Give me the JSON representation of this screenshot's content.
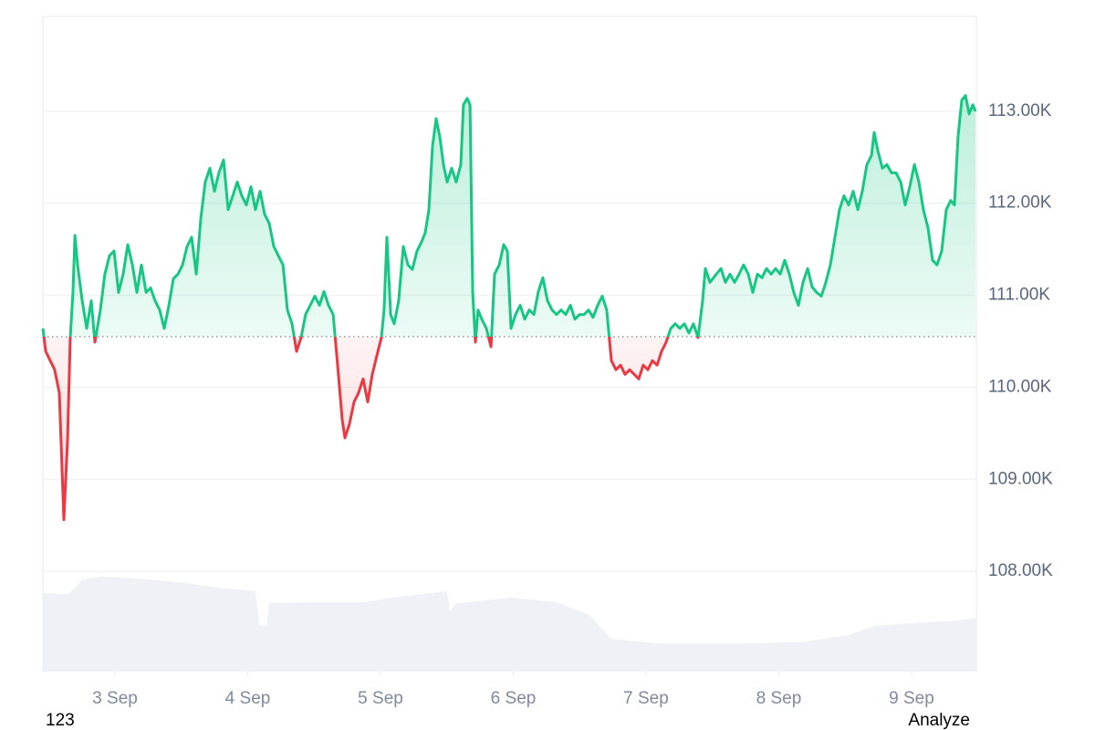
{
  "chart_data": {
    "type": "baseline",
    "xlim": [
      2.457,
      9.488
    ],
    "ylim": [
      106910,
      114030
    ],
    "y2lim": [
      0,
      100
    ],
    "xticks": [
      {
        "value": 3,
        "label": "3 Sep"
      },
      {
        "value": 4,
        "label": "4 Sep"
      },
      {
        "value": 5,
        "label": "5 Sep"
      },
      {
        "value": 6,
        "label": "6 Sep"
      },
      {
        "value": 7,
        "label": "7 Sep"
      },
      {
        "value": 8,
        "label": "8 Sep"
      },
      {
        "value": 9,
        "label": "9 Sep"
      }
    ],
    "yticks": [
      {
        "value": 108000,
        "label": "108.00K"
      },
      {
        "value": 109000,
        "label": "109.00K"
      },
      {
        "value": 110000,
        "label": "110.00K"
      },
      {
        "value": 111000,
        "label": "111.00K"
      },
      {
        "value": 112000,
        "label": "112.00K"
      },
      {
        "value": 113000,
        "label": "113.00K"
      }
    ],
    "grid": true,
    "baseline": 110550,
    "above_color": "#16c784",
    "below_color": "#ea3943",
    "series": [
      {
        "color": "#16c784",
        "x": [
          2.457,
          2.478,
          2.512,
          2.546,
          2.581,
          2.615,
          2.643,
          2.663,
          2.684,
          2.698,
          2.718,
          2.753,
          2.787,
          2.821,
          2.849,
          2.89,
          2.924,
          2.959,
          2.993,
          3.027,
          3.062,
          3.096,
          3.131,
          3.165,
          3.199,
          3.234,
          3.268,
          3.302,
          3.337,
          3.371,
          3.405,
          3.44,
          3.474,
          3.509,
          3.543,
          3.577,
          3.612,
          3.646,
          3.68,
          3.715,
          3.749,
          3.783,
          3.818,
          3.852,
          3.887,
          3.921,
          3.955,
          3.99,
          4.024,
          4.058,
          4.093,
          4.127,
          4.162,
          4.196,
          4.23,
          4.265,
          4.299,
          4.333,
          4.368,
          4.402,
          4.436,
          4.471,
          4.505,
          4.54,
          4.574,
          4.608,
          4.643,
          4.677,
          4.711,
          4.732,
          4.766,
          4.801,
          4.835,
          4.869,
          4.904,
          4.938,
          4.972,
          5.007,
          5.027,
          5.048,
          5.076,
          5.103,
          5.137,
          5.172,
          5.206,
          5.24,
          5.275,
          5.309,
          5.337,
          5.364,
          5.392,
          5.419,
          5.447,
          5.474,
          5.502,
          5.536,
          5.57,
          5.605,
          5.625,
          5.653,
          5.674,
          5.694,
          5.715,
          5.735,
          5.763,
          5.797,
          5.832,
          5.859,
          5.894,
          5.928,
          5.955,
          5.983,
          6.017,
          6.052,
          6.086,
          6.12,
          6.155,
          6.189,
          6.223,
          6.258,
          6.292,
          6.326,
          6.361,
          6.395,
          6.43,
          6.464,
          6.498,
          6.533,
          6.567,
          6.601,
          6.636,
          6.67,
          6.704,
          6.739,
          6.773,
          6.808,
          6.842,
          6.876,
          6.911,
          6.945,
          6.979,
          7.014,
          7.048,
          7.083,
          7.117,
          7.151,
          7.186,
          7.22,
          7.254,
          7.289,
          7.323,
          7.357,
          7.392,
          7.426,
          7.447,
          7.481,
          7.529,
          7.564,
          7.598,
          7.632,
          7.667,
          7.701,
          7.735,
          7.77,
          7.804,
          7.839,
          7.873,
          7.907,
          7.942,
          7.976,
          8.01,
          8.045,
          8.079,
          8.113,
          8.148,
          8.182,
          8.217,
          8.251,
          8.285,
          8.32,
          8.354,
          8.388,
          8.423,
          8.457,
          8.491,
          8.526,
          8.56,
          8.595,
          8.629,
          8.663,
          8.698,
          8.718,
          8.746,
          8.78,
          8.814,
          8.849,
          8.883,
          8.918,
          8.952,
          8.986,
          9.021,
          9.055,
          9.089,
          9.124,
          9.158,
          9.192,
          9.227,
          9.261,
          9.295,
          9.323,
          9.35,
          9.378,
          9.406,
          9.433,
          9.461,
          9.481
        ],
        "values": [
          110640,
          110390,
          110290,
          110190,
          109940,
          108560,
          109450,
          110540,
          111040,
          111650,
          111330,
          110940,
          110640,
          110940,
          110490,
          110840,
          111230,
          111430,
          111480,
          111030,
          111230,
          111550,
          111330,
          111030,
          111330,
          111030,
          111080,
          110940,
          110840,
          110640,
          110880,
          111180,
          111230,
          111330,
          111530,
          111630,
          111230,
          111830,
          112230,
          112380,
          112130,
          112330,
          112470,
          111930,
          112080,
          112230,
          112080,
          111980,
          112180,
          111930,
          112130,
          111880,
          111780,
          111530,
          111430,
          111330,
          110840,
          110690,
          110390,
          110540,
          110790,
          110890,
          110990,
          110890,
          111040,
          110890,
          110790,
          110240,
          109650,
          109450,
          109600,
          109840,
          109940,
          110090,
          109840,
          110140,
          110340,
          110540,
          110840,
          111630,
          110790,
          110690,
          110940,
          111530,
          111330,
          111280,
          111480,
          111580,
          111680,
          111930,
          112620,
          112920,
          112720,
          112420,
          112230,
          112380,
          112230,
          112420,
          113070,
          113140,
          113070,
          111040,
          110490,
          110840,
          110740,
          110640,
          110440,
          111230,
          111330,
          111550,
          111480,
          110640,
          110790,
          110890,
          110740,
          110840,
          110790,
          111040,
          111190,
          110940,
          110840,
          110790,
          110840,
          110790,
          110890,
          110740,
          110790,
          110790,
          110840,
          110760,
          110890,
          110990,
          110840,
          110290,
          110190,
          110240,
          110140,
          110190,
          110140,
          110090,
          110240,
          110190,
          110290,
          110240,
          110390,
          110490,
          110640,
          110690,
          110640,
          110690,
          110590,
          110690,
          110540,
          110940,
          111290,
          111140,
          111230,
          111290,
          111140,
          111230,
          111140,
          111230,
          111330,
          111230,
          111030,
          111230,
          111190,
          111290,
          111230,
          111290,
          111230,
          111380,
          111230,
          111030,
          110890,
          111140,
          111290,
          111090,
          111030,
          110990,
          111140,
          111330,
          111630,
          111930,
          112080,
          111980,
          112130,
          111930,
          112130,
          112420,
          112520,
          112770,
          112570,
          112380,
          112420,
          112330,
          112330,
          112230,
          111980,
          112180,
          112420,
          112230,
          111930,
          111730,
          111380,
          111330,
          111480,
          111930,
          112030,
          111980,
          112720,
          113120,
          113170,
          112970,
          113070,
          113000
        ]
      },
      {
        "color": "#eef1f5",
        "axis": "y2",
        "x": [
          2.457,
          2.649,
          2.753,
          2.89,
          3.165,
          3.509,
          3.783,
          4.058,
          4.086,
          4.141,
          4.162,
          4.471,
          4.883,
          5.089,
          5.502,
          5.522,
          5.57,
          5.983,
          6.326,
          6.567,
          6.739,
          7.083,
          7.632,
          8.182,
          8.526,
          8.732,
          9.007,
          9.35,
          9.488
        ],
        "values": [
          12.0,
          11.8,
          14.0,
          14.5,
          14.2,
          13.6,
          12.8,
          12.3,
          7.1,
          7.0,
          10.4,
          10.6,
          10.6,
          11.3,
          12.3,
          9.2,
          10.4,
          11.3,
          10.6,
          8.7,
          5.0,
          4.3,
          4.3,
          4.5,
          5.6,
          7.0,
          7.4,
          7.8,
          8.2
        ]
      }
    ],
    "annotations": [
      "123",
      "Analyze"
    ]
  }
}
